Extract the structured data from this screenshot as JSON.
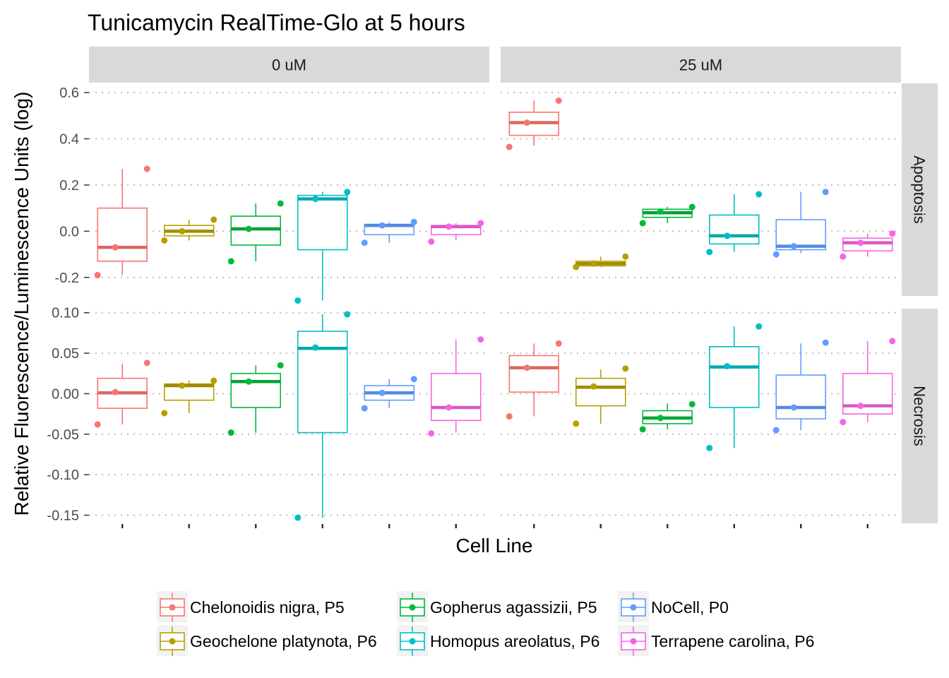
{
  "chart_data": {
    "type": "boxplot",
    "title": "Tunicamycin RealTime-Glo at 5 hours",
    "xlabel": "Cell Line",
    "ylabel": "Relative Fluorescence/Luminescence Units (log)",
    "column_facets": [
      "0 uM",
      "25 uM"
    ],
    "row_facets": [
      "Apoptosis",
      "Necrosis"
    ],
    "grid": "horizontal dotted",
    "legend_position": "bottom",
    "series": [
      {
        "name": "Chelonoidis nigra, P5",
        "color": "#F8766D"
      },
      {
        "name": "Geochelone platynota, P6",
        "color": "#B79F00"
      },
      {
        "name": "Gopherus agassizii, P5",
        "color": "#00BA38"
      },
      {
        "name": "Homopus areolatus, P6",
        "color": "#00BFC4"
      },
      {
        "name": "NoCell, P0",
        "color": "#619CFF"
      },
      {
        "name": "Terrapene carolina, P6",
        "color": "#F564E3"
      }
    ],
    "panels": [
      {
        "column": "0 uM",
        "row": "Apoptosis",
        "ylim": [
          -0.28,
          0.64
        ],
        "yticks": [
          0.6,
          0.4,
          0.2,
          0.0,
          -0.2
        ],
        "ytick_labels": [
          "0.6",
          "0.4",
          "0.2",
          "0.0",
          "-0.2"
        ],
        "boxes": [
          {
            "series": "Chelonoidis nigra, P5",
            "min": -0.19,
            "q1": -0.13,
            "median": -0.07,
            "q3": 0.1,
            "max": 0.27,
            "points": [
              0.27,
              -0.07,
              -0.19
            ]
          },
          {
            "series": "Geochelone platynota, P6",
            "min": -0.04,
            "q1": -0.02,
            "median": 0.0,
            "q3": 0.025,
            "max": 0.05,
            "points": [
              0.05,
              0.0,
              -0.04
            ]
          },
          {
            "series": "Gopherus agassizii, P5",
            "min": -0.13,
            "q1": -0.06,
            "median": 0.01,
            "q3": 0.065,
            "max": 0.12,
            "points": [
              0.12,
              0.01,
              -0.13
            ]
          },
          {
            "series": "Homopus areolatus, P6",
            "min": -0.3,
            "q1": -0.08,
            "median": 0.14,
            "q3": 0.155,
            "max": 0.17,
            "points": [
              0.17,
              0.14,
              -0.3
            ]
          },
          {
            "series": "NoCell, P0",
            "min": -0.05,
            "q1": -0.015,
            "median": 0.025,
            "q3": 0.03,
            "max": 0.04,
            "points": [
              0.04,
              0.025,
              -0.05
            ]
          },
          {
            "series": "Terrapene carolina, P6",
            "min": -0.04,
            "q1": -0.015,
            "median": 0.02,
            "q3": 0.025,
            "max": 0.035,
            "points": [
              0.035,
              0.02,
              -0.045
            ]
          }
        ]
      },
      {
        "column": "25 uM",
        "row": "Apoptosis",
        "ylim": [
          -0.28,
          0.64
        ],
        "yticks": [
          0.6,
          0.4,
          0.2,
          0.0,
          -0.2
        ],
        "ytick_labels": [
          "0.6",
          "0.4",
          "0.2",
          "0.0",
          "-0.2"
        ],
        "boxes": [
          {
            "series": "Chelonoidis nigra, P5",
            "min": 0.37,
            "q1": 0.415,
            "median": 0.47,
            "q3": 0.515,
            "max": 0.565,
            "points": [
              0.565,
              0.47,
              0.365
            ]
          },
          {
            "series": "Geochelone platynota, P6",
            "min": -0.155,
            "q1": -0.15,
            "median": -0.14,
            "q3": -0.13,
            "max": -0.11,
            "points": [
              -0.11,
              -0.14,
              -0.155
            ]
          },
          {
            "series": "Gopherus agassizii, P5",
            "min": 0.035,
            "q1": 0.06,
            "median": 0.08,
            "q3": 0.095,
            "max": 0.105,
            "points": [
              0.105,
              0.085,
              0.035
            ]
          },
          {
            "series": "Homopus areolatus, P6",
            "min": -0.09,
            "q1": -0.055,
            "median": -0.02,
            "q3": 0.07,
            "max": 0.16,
            "points": [
              0.16,
              -0.02,
              -0.09
            ]
          },
          {
            "series": "NoCell, P0",
            "min": -0.095,
            "q1": -0.08,
            "median": -0.065,
            "q3": 0.05,
            "max": 0.17,
            "points": [
              0.17,
              -0.065,
              -0.1
            ]
          },
          {
            "series": "Terrapene carolina, P6",
            "min": -0.11,
            "q1": -0.085,
            "median": -0.05,
            "q3": -0.03,
            "max": -0.01,
            "points": [
              -0.01,
              -0.05,
              -0.11
            ]
          }
        ]
      },
      {
        "column": "0 uM",
        "row": "Necrosis",
        "ylim": [
          -0.16,
          0.105
        ],
        "yticks": [
          0.1,
          0.05,
          0.0,
          -0.05,
          -0.1,
          -0.15
        ],
        "ytick_labels": [
          "0.10",
          "0.05",
          "0.00",
          "-0.05",
          "-0.10",
          "-0.15"
        ],
        "boxes": [
          {
            "series": "Chelonoidis nigra, P5",
            "min": -0.038,
            "q1": -0.018,
            "median": 0.001,
            "q3": 0.019,
            "max": 0.037,
            "points": [
              0.038,
              0.002,
              -0.038
            ]
          },
          {
            "series": "Geochelone platynota, P6",
            "min": -0.024,
            "q1": -0.008,
            "median": 0.01,
            "q3": 0.012,
            "max": 0.016,
            "points": [
              0.016,
              0.01,
              -0.024
            ]
          },
          {
            "series": "Gopherus agassizii, P5",
            "min": -0.048,
            "q1": -0.017,
            "median": 0.015,
            "q3": 0.025,
            "max": 0.035,
            "points": [
              0.035,
              0.015,
              -0.048
            ]
          },
          {
            "series": "Homopus areolatus, P6",
            "min": -0.153,
            "q1": -0.048,
            "median": 0.056,
            "q3": 0.077,
            "max": 0.098,
            "points": [
              0.098,
              0.057,
              -0.153
            ]
          },
          {
            "series": "NoCell, P0",
            "min": -0.018,
            "q1": -0.008,
            "median": 0.001,
            "q3": 0.01,
            "max": 0.018,
            "points": [
              0.018,
              0.001,
              -0.018
            ]
          },
          {
            "series": "Terrapene carolina, P6",
            "min": -0.048,
            "q1": -0.033,
            "median": -0.017,
            "q3": 0.025,
            "max": 0.067,
            "points": [
              0.067,
              -0.017,
              -0.049
            ]
          }
        ]
      },
      {
        "column": "25 uM",
        "row": "Necrosis",
        "ylim": [
          -0.16,
          0.105
        ],
        "yticks": [
          0.1,
          0.05,
          0.0,
          -0.05,
          -0.1,
          -0.15
        ],
        "ytick_labels": [
          "0.10",
          "0.05",
          "0.00",
          "-0.05",
          "-0.10",
          "-0.15"
        ],
        "boxes": [
          {
            "series": "Chelonoidis nigra, P5",
            "min": -0.028,
            "q1": 0.002,
            "median": 0.032,
            "q3": 0.047,
            "max": 0.062,
            "points": [
              0.062,
              0.032,
              -0.028
            ]
          },
          {
            "series": "Geochelone platynota, P6",
            "min": -0.037,
            "q1": -0.015,
            "median": 0.008,
            "q3": 0.019,
            "max": 0.03,
            "points": [
              0.031,
              0.009,
              -0.037
            ]
          },
          {
            "series": "Gopherus agassizii, P5",
            "min": -0.044,
            "q1": -0.037,
            "median": -0.03,
            "q3": -0.021,
            "max": -0.012,
            "points": [
              -0.013,
              -0.03,
              -0.044
            ]
          },
          {
            "series": "Homopus areolatus, P6",
            "min": -0.067,
            "q1": -0.017,
            "median": 0.033,
            "q3": 0.058,
            "max": 0.083,
            "points": [
              0.083,
              0.034,
              -0.067
            ]
          },
          {
            "series": "NoCell, P0",
            "min": -0.045,
            "q1": -0.031,
            "median": -0.017,
            "q3": 0.023,
            "max": 0.062,
            "points": [
              0.063,
              -0.017,
              -0.045
            ]
          },
          {
            "series": "Terrapene carolina, P6",
            "min": -0.035,
            "q1": -0.025,
            "median": -0.015,
            "q3": 0.025,
            "max": 0.065,
            "points": [
              0.065,
              -0.015,
              -0.035
            ]
          }
        ]
      }
    ]
  }
}
